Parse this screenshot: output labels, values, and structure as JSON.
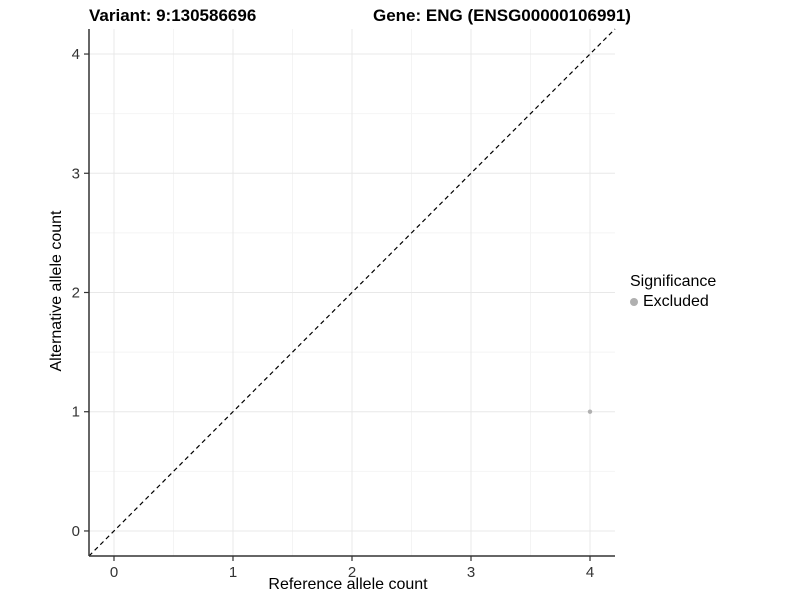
{
  "figure": {
    "title_left": "Variant: 9:130586696",
    "title_right": "Gene: ENG (ENSG00000106991)"
  },
  "chart_data": {
    "type": "scatter",
    "title": "Variant: 9:130586696   Gene: ENG (ENSG00000106991)",
    "xlabel": "Reference allele count",
    "ylabel": "Alternative allele count",
    "xlim": [
      -0.21,
      4.21
    ],
    "ylim": [
      -0.21,
      4.21
    ],
    "xticks": [
      0,
      1,
      2,
      3,
      4
    ],
    "yticks": [
      0,
      1,
      2,
      3,
      4
    ],
    "minor_ticks": [
      0.5,
      1.5,
      2.5,
      3.5
    ],
    "grid": "major and minor gridlines, white background",
    "series": [
      {
        "name": "Excluded",
        "color": "#b0b0b0",
        "points": [
          {
            "x": 4,
            "y": 1
          }
        ]
      }
    ],
    "reference_line": {
      "description": "identity line y = x",
      "style": "dashed",
      "color": "#000000",
      "from": [
        -0.21,
        -0.21
      ],
      "to": [
        4.21,
        4.21
      ]
    },
    "legend": {
      "title": "Significance",
      "position": "right",
      "entries": [
        {
          "label": "Excluded",
          "color": "#b0b0b0"
        }
      ]
    }
  },
  "colors": {
    "background": "#ffffff",
    "grid_major": "#e8e8e8",
    "grid_minor": "#f4f4f4",
    "axis_line": "#333333",
    "tick_mark": "#333333",
    "tick_label": "#333333",
    "point": "#b0b0b0",
    "dashed_line": "#000000"
  }
}
